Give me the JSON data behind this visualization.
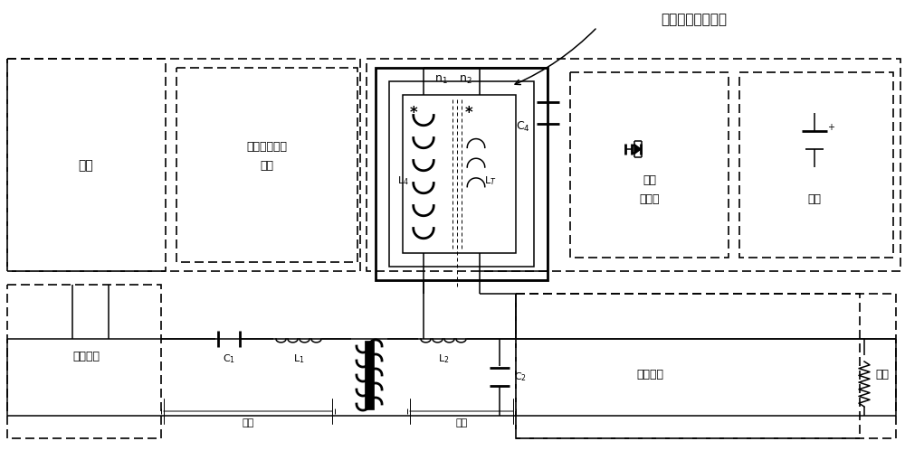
{
  "bg_color": "#ffffff",
  "figsize": [
    10.0,
    5.09
  ],
  "dpi": 100,
  "color": "black",
  "lw_thin": 0.7,
  "lw_med": 1.1,
  "lw_thick": 2.0,
  "lw_dash": 1.2,
  "texts": {
    "label_top": "通讯信号发射模块",
    "label_power_tl": "电源",
    "label_comm_rx": "通讯信号接收\n模块",
    "label_amp": "功率\n放大器",
    "label_power_tr": "电源",
    "label_inverter": "逆变电路",
    "label_rectifier": "整流电路",
    "label_load": "负载",
    "label_primary": "原边",
    "label_secondary": "副边"
  }
}
